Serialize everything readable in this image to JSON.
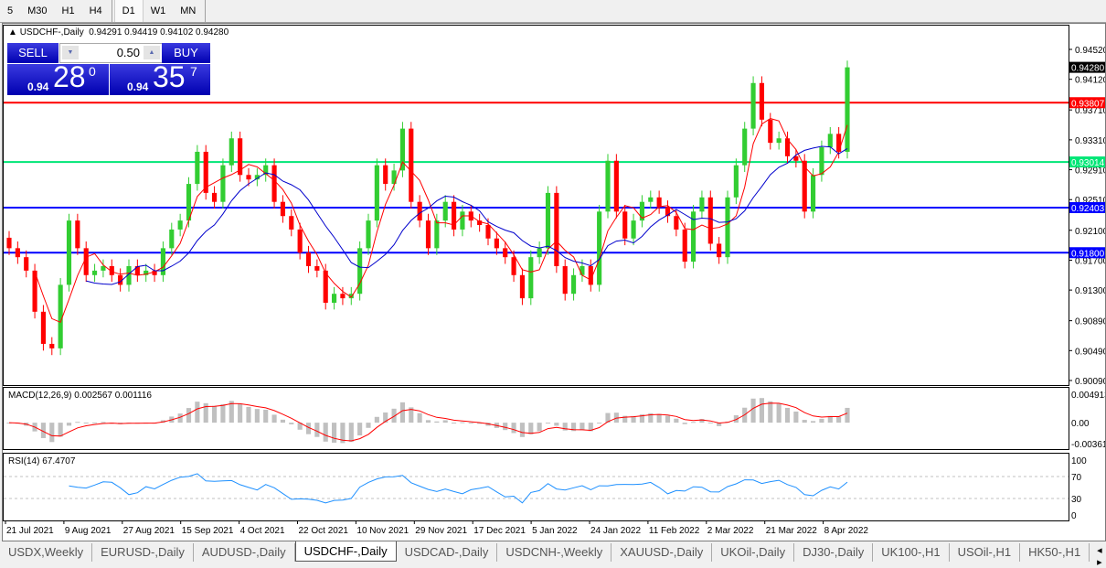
{
  "timeframes": [
    {
      "label": "5",
      "selected": false
    },
    {
      "label": "M30",
      "selected": false
    },
    {
      "label": "H1",
      "selected": false
    },
    {
      "label": "H4",
      "selected": false
    },
    {
      "label": "D1",
      "selected": true
    },
    {
      "label": "W1",
      "selected": false
    },
    {
      "label": "MN",
      "selected": false
    }
  ],
  "chart": {
    "symbol_label": "USDCHF-,Daily",
    "ohlc": "0.94291 0.94419 0.94102 0.94280",
    "trade": {
      "sell_label": "SELL",
      "buy_label": "BUY",
      "lot": "0.50",
      "sell_prefix": "0.94",
      "sell_big": "28",
      "sell_small": "0",
      "buy_prefix": "0.94",
      "buy_big": "35",
      "buy_small": "7"
    },
    "price_ticks": [
      "0.94520",
      "0.94120",
      "0.93710",
      "0.93310",
      "0.92910",
      "0.92510",
      "0.92100",
      "0.91700",
      "0.91300",
      "0.90890",
      "0.90490",
      "0.90090"
    ],
    "price_range": [
      0.9009,
      0.9452
    ],
    "current_price": {
      "label": "0.94280",
      "value": 0.9428,
      "color": "#000000"
    },
    "levels": [
      {
        "label": "0.93807",
        "value": 0.93807,
        "color": "#ff0000"
      },
      {
        "label": "0.93014",
        "value": 0.93014,
        "color": "#00e676"
      },
      {
        "label": "0.92403",
        "value": 0.92403,
        "color": "#0000ff"
      },
      {
        "label": "0.91800",
        "value": 0.918,
        "color": "#0000ff"
      }
    ],
    "colors": {
      "bull": "#32cd32",
      "bear": "#ff0000",
      "ma_fast": "#ff0000",
      "ma_slow": "#0000cc",
      "macd_hist": "#c0c0c0",
      "macd_signal": "#ff0000",
      "rsi": "#1e90ff"
    },
    "closes": [
      0.9186,
      0.9174,
      0.9156,
      0.9101,
      0.9058,
      0.9052,
      0.9137,
      0.9223,
      0.9186,
      0.915,
      0.9156,
      0.9162,
      0.915,
      0.9137,
      0.9162,
      0.915,
      0.9156,
      0.915,
      0.9186,
      0.9211,
      0.9223,
      0.9272,
      0.9315,
      0.926,
      0.9248,
      0.9297,
      0.9333,
      0.9284,
      0.9278,
      0.9284,
      0.9297,
      0.9248,
      0.9229,
      0.9211,
      0.918,
      0.9162,
      0.9156,
      0.9113,
      0.9125,
      0.9119,
      0.9125,
      0.9186,
      0.9223,
      0.9297,
      0.9272,
      0.929,
      0.9346,
      0.9248,
      0.9223,
      0.9186,
      0.9223,
      0.9248,
      0.9211,
      0.9235,
      0.9223,
      0.9217,
      0.9199,
      0.9186,
      0.9174,
      0.915,
      0.9119,
      0.9174,
      0.9186,
      0.926,
      0.9162,
      0.9125,
      0.915,
      0.9162,
      0.9137,
      0.9235,
      0.9303,
      0.9235,
      0.9199,
      0.9223,
      0.9248,
      0.9254,
      0.9241,
      0.9229,
      0.9211,
      0.9168,
      0.9235,
      0.9254,
      0.9192,
      0.9174,
      0.9254,
      0.9297,
      0.9346,
      0.9407,
      0.9358,
      0.9327,
      0.9333,
      0.9309,
      0.9303,
      0.9235,
      0.9284,
      0.9321,
      0.9339,
      0.9315,
      0.9428
    ],
    "macd": {
      "label": "MACD(12,26,9) 0.002567 0.001116",
      "ticks": [
        "0.004913",
        "0.00",
        "-0.003614"
      ],
      "range": [
        -0.003614,
        0.004913
      ]
    },
    "rsi": {
      "label": "RSI(14) 67.4707",
      "ticks": [
        "100",
        "70",
        "30",
        "0"
      ],
      "levels": [
        70,
        30
      ]
    },
    "dates": [
      "21 Jul 2021",
      "9 Aug 2021",
      "27 Aug 2021",
      "15 Sep 2021",
      "4 Oct 2021",
      "22 Oct 2021",
      "10 Nov 2021",
      "29 Nov 2021",
      "17 Dec 2021",
      "5 Jan 2022",
      "24 Jan 2022",
      "11 Feb 2022",
      "2 Mar 2022",
      "21 Mar 2022",
      "8 Apr 2022"
    ]
  },
  "tabs": [
    {
      "label": "USDX,Weekly"
    },
    {
      "label": "EURUSD-,Daily"
    },
    {
      "label": "AUDUSD-,Daily"
    },
    {
      "label": "USDCHF-,Daily",
      "active": true
    },
    {
      "label": "USDCAD-,Daily"
    },
    {
      "label": "USDCNH-,Weekly"
    },
    {
      "label": "XAUUSD-,Daily"
    },
    {
      "label": "UKOil-,Daily"
    },
    {
      "label": "DJ30-,Daily"
    },
    {
      "label": "UK100-,H1"
    },
    {
      "label": "USOil-,H1"
    },
    {
      "label": "HK50-,H1"
    }
  ]
}
